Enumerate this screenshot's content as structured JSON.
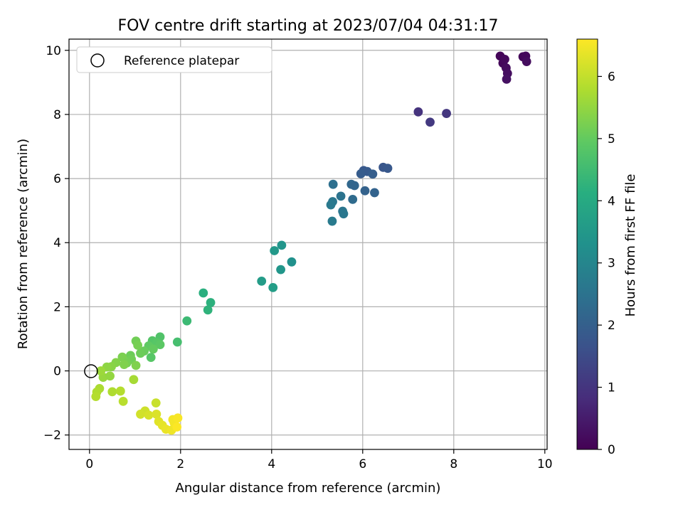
{
  "chart_data": {
    "type": "scatter",
    "title": "FOV centre drift starting at 2023/07/04 04:31:17",
    "xlabel": "Angular distance from reference (arcmin)",
    "ylabel": "Rotation from reference (arcmin)",
    "xlim": [
      -0.45,
      10.05
    ],
    "ylim": [
      -2.45,
      10.35
    ],
    "xticks": [
      0,
      2,
      4,
      6,
      8,
      10
    ],
    "yticks": [
      -2,
      0,
      2,
      4,
      6,
      8,
      10
    ],
    "grid": true,
    "legend": {
      "position": "top-left",
      "entries": [
        "Reference platepar"
      ]
    },
    "reference_point": {
      "x": 0,
      "y": 0
    },
    "colorbar": {
      "label": "Hours from first FF file",
      "min": 0,
      "max": 6.6,
      "ticks": [
        0,
        1,
        2,
        3,
        4,
        5,
        6
      ],
      "colormap": "viridis"
    },
    "points": [
      {
        "x": 9.02,
        "y": 9.82,
        "c": 0.08
      },
      {
        "x": 9.08,
        "y": 9.6,
        "c": 0.12
      },
      {
        "x": 9.12,
        "y": 9.72,
        "c": 0.15
      },
      {
        "x": 9.15,
        "y": 9.45,
        "c": 0.2
      },
      {
        "x": 9.18,
        "y": 9.28,
        "c": 0.25
      },
      {
        "x": 9.16,
        "y": 9.1,
        "c": 0.3
      },
      {
        "x": 9.52,
        "y": 9.8,
        "c": 0.1
      },
      {
        "x": 9.58,
        "y": 9.82,
        "c": 0.14
      },
      {
        "x": 9.6,
        "y": 9.65,
        "c": 0.22
      },
      {
        "x": 7.22,
        "y": 8.08,
        "c": 0.95
      },
      {
        "x": 7.48,
        "y": 7.76,
        "c": 1.1
      },
      {
        "x": 7.84,
        "y": 8.03,
        "c": 1.05
      },
      {
        "x": 6.02,
        "y": 6.25,
        "c": 1.8
      },
      {
        "x": 6.1,
        "y": 6.22,
        "c": 1.85
      },
      {
        "x": 5.96,
        "y": 6.15,
        "c": 1.9
      },
      {
        "x": 6.22,
        "y": 6.14,
        "c": 1.95
      },
      {
        "x": 6.45,
        "y": 6.35,
        "c": 1.75
      },
      {
        "x": 6.55,
        "y": 6.32,
        "c": 1.8
      },
      {
        "x": 5.75,
        "y": 5.82,
        "c": 2.2
      },
      {
        "x": 5.82,
        "y": 5.78,
        "c": 2.15
      },
      {
        "x": 6.05,
        "y": 5.62,
        "c": 2.05
      },
      {
        "x": 6.26,
        "y": 5.56,
        "c": 2.1
      },
      {
        "x": 5.35,
        "y": 5.82,
        "c": 2.4
      },
      {
        "x": 5.52,
        "y": 5.45,
        "c": 2.5
      },
      {
        "x": 5.78,
        "y": 5.35,
        "c": 2.3
      },
      {
        "x": 5.34,
        "y": 5.28,
        "c": 2.6
      },
      {
        "x": 5.3,
        "y": 5.18,
        "c": 2.65
      },
      {
        "x": 5.56,
        "y": 4.98,
        "c": 2.55
      },
      {
        "x": 5.58,
        "y": 4.9,
        "c": 2.6
      },
      {
        "x": 5.33,
        "y": 4.67,
        "c": 2.7
      },
      {
        "x": 4.22,
        "y": 3.92,
        "c": 3.4
      },
      {
        "x": 4.06,
        "y": 3.75,
        "c": 3.5
      },
      {
        "x": 4.44,
        "y": 3.4,
        "c": 3.3
      },
      {
        "x": 4.2,
        "y": 3.16,
        "c": 3.45
      },
      {
        "x": 3.78,
        "y": 2.8,
        "c": 3.6
      },
      {
        "x": 4.03,
        "y": 2.6,
        "c": 3.65
      },
      {
        "x": 2.5,
        "y": 2.43,
        "c": 4.15
      },
      {
        "x": 2.66,
        "y": 2.13,
        "c": 4.2
      },
      {
        "x": 2.6,
        "y": 1.9,
        "c": 4.25
      },
      {
        "x": 2.14,
        "y": 1.56,
        "c": 4.45
      },
      {
        "x": 1.93,
        "y": 0.9,
        "c": 4.6
      },
      {
        "x": 1.55,
        "y": 1.06,
        "c": 4.75
      },
      {
        "x": 1.38,
        "y": 0.94,
        "c": 4.8
      },
      {
        "x": 1.48,
        "y": 0.88,
        "c": 4.85
      },
      {
        "x": 1.55,
        "y": 0.82,
        "c": 4.9
      },
      {
        "x": 1.3,
        "y": 0.78,
        "c": 4.95
      },
      {
        "x": 1.4,
        "y": 0.68,
        "c": 5.0
      },
      {
        "x": 1.2,
        "y": 0.62,
        "c": 5.05
      },
      {
        "x": 1.12,
        "y": 0.55,
        "c": 5.1
      },
      {
        "x": 1.35,
        "y": 0.42,
        "c": 4.85
      },
      {
        "x": 1.02,
        "y": 0.93,
        "c": 5.15
      },
      {
        "x": 1.06,
        "y": 0.8,
        "c": 5.2
      },
      {
        "x": 0.9,
        "y": 0.48,
        "c": 5.1
      },
      {
        "x": 0.92,
        "y": 0.36,
        "c": 5.15
      },
      {
        "x": 0.72,
        "y": 0.43,
        "c": 5.25
      },
      {
        "x": 0.82,
        "y": 0.25,
        "c": 5.2
      },
      {
        "x": 1.02,
        "y": 0.17,
        "c": 5.3
      },
      {
        "x": 0.58,
        "y": 0.26,
        "c": 5.35
      },
      {
        "x": 0.76,
        "y": 0.2,
        "c": 5.3
      },
      {
        "x": 0.48,
        "y": 0.13,
        "c": 5.4
      },
      {
        "x": 0.38,
        "y": 0.12,
        "c": 5.45
      },
      {
        "x": 0.3,
        "y": -0.2,
        "c": 5.55
      },
      {
        "x": 0.45,
        "y": -0.16,
        "c": 5.5
      },
      {
        "x": 0.25,
        "y": 0.0,
        "c": 5.6
      },
      {
        "x": 0.97,
        "y": -0.27,
        "c": 5.7
      },
      {
        "x": 0.22,
        "y": -0.55,
        "c": 5.75
      },
      {
        "x": 0.16,
        "y": -0.66,
        "c": 5.8
      },
      {
        "x": 0.14,
        "y": -0.8,
        "c": 5.85
      },
      {
        "x": 0.5,
        "y": -0.65,
        "c": 5.8
      },
      {
        "x": 0.68,
        "y": -0.63,
        "c": 5.85
      },
      {
        "x": 0.74,
        "y": -0.95,
        "c": 5.9
      },
      {
        "x": 1.46,
        "y": -1.0,
        "c": 6.05
      },
      {
        "x": 1.22,
        "y": -1.25,
        "c": 6.1
      },
      {
        "x": 1.12,
        "y": -1.35,
        "c": 6.15
      },
      {
        "x": 1.3,
        "y": -1.38,
        "c": 6.2
      },
      {
        "x": 1.47,
        "y": -1.35,
        "c": 6.25
      },
      {
        "x": 1.52,
        "y": -1.58,
        "c": 6.3
      },
      {
        "x": 1.6,
        "y": -1.7,
        "c": 6.35
      },
      {
        "x": 1.68,
        "y": -1.82,
        "c": 6.4
      },
      {
        "x": 1.8,
        "y": -1.85,
        "c": 6.45
      },
      {
        "x": 1.86,
        "y": -1.62,
        "c": 6.5
      },
      {
        "x": 1.83,
        "y": -1.52,
        "c": 6.5
      },
      {
        "x": 1.94,
        "y": -1.47,
        "c": 6.55
      },
      {
        "x": 1.92,
        "y": -1.75,
        "c": 6.58
      }
    ]
  }
}
